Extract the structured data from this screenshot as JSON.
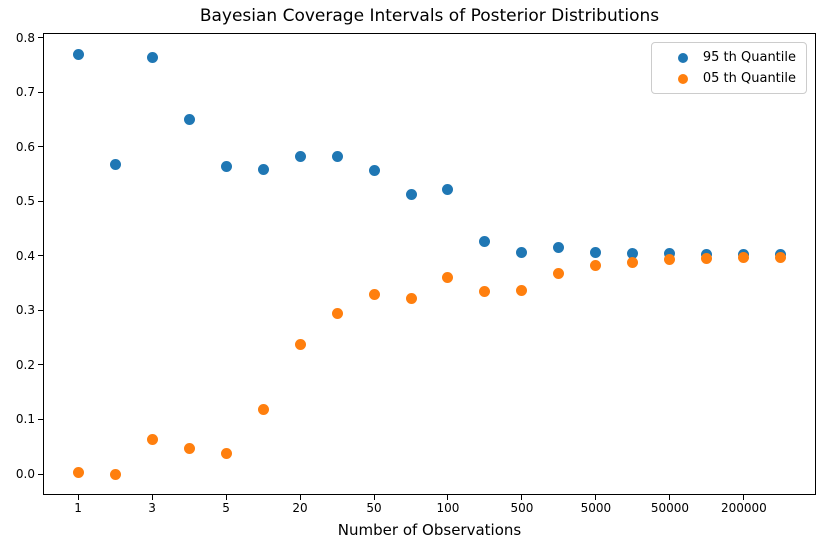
{
  "chart_data": {
    "type": "scatter",
    "title": "Bayesian Coverage Intervals of Posterior Distributions",
    "xlabel": "Number of Observations",
    "ylabel": "",
    "grid": false,
    "legend_position": "upper right",
    "x_axis": {
      "scale": "evenly-spaced points (log-like labels), ticks at every other point",
      "num_points": 20,
      "lim": [
        -0.95,
        19.95
      ],
      "tick_indices": [
        0,
        2,
        4,
        6,
        8,
        10,
        12,
        14,
        16,
        18
      ],
      "tick_labels": [
        "1",
        "3",
        "5",
        "20",
        "50",
        "100",
        "500",
        "5000",
        "50000",
        "200000"
      ]
    },
    "y_axis": {
      "lim": [
        -0.0385,
        0.8085
      ],
      "ticks": [
        0.0,
        0.1,
        0.2,
        0.3,
        0.4,
        0.5,
        0.6,
        0.7,
        0.8
      ],
      "tick_labels": [
        "0.0",
        "0.1",
        "0.2",
        "0.3",
        "0.4",
        "0.5",
        "0.6",
        "0.7",
        "0.8"
      ]
    },
    "series": [
      {
        "name": "95 th Quantile",
        "color": "#1f77b4",
        "marker": "circle",
        "values": [
          0.77,
          0.568,
          0.764,
          0.65,
          0.563,
          0.558,
          0.582,
          0.582,
          0.556,
          0.512,
          0.521,
          0.426,
          0.407,
          0.416,
          0.406,
          0.404,
          0.404,
          0.402,
          0.402,
          0.402
        ]
      },
      {
        "name": "05 th Quantile",
        "color": "#ff7f0e",
        "marker": "circle",
        "values": [
          0.003,
          0.0,
          0.063,
          0.047,
          0.038,
          0.118,
          0.237,
          0.295,
          0.33,
          0.321,
          0.36,
          0.335,
          0.337,
          0.367,
          0.383,
          0.388,
          0.394,
          0.395,
          0.397,
          0.397
        ]
      }
    ],
    "axis_color": "#000000",
    "background_color": "#ffffff"
  }
}
